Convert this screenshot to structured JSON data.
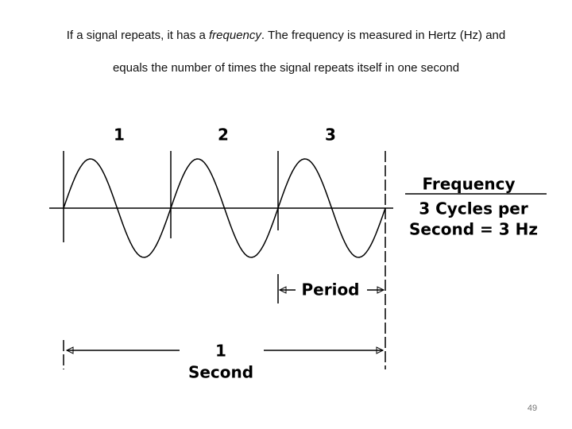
{
  "caption": {
    "line1": {
      "before": "If a signal repeats, it has a ",
      "emphasis": "frequency",
      "after": ". The frequency is measured in Hertz (Hz) and"
    },
    "line2": "equals the number of times the signal repeats itself in one second"
  },
  "diagram": {
    "cycle_labels": [
      "1",
      "2",
      "3"
    ],
    "frequency_box": {
      "heading": "Frequency",
      "line1": "3 Cycles per",
      "line2": "Second = 3 Hz"
    },
    "period_label": "Period",
    "second_label": {
      "number": "1",
      "unit": "Second"
    }
  },
  "page_number": "49"
}
